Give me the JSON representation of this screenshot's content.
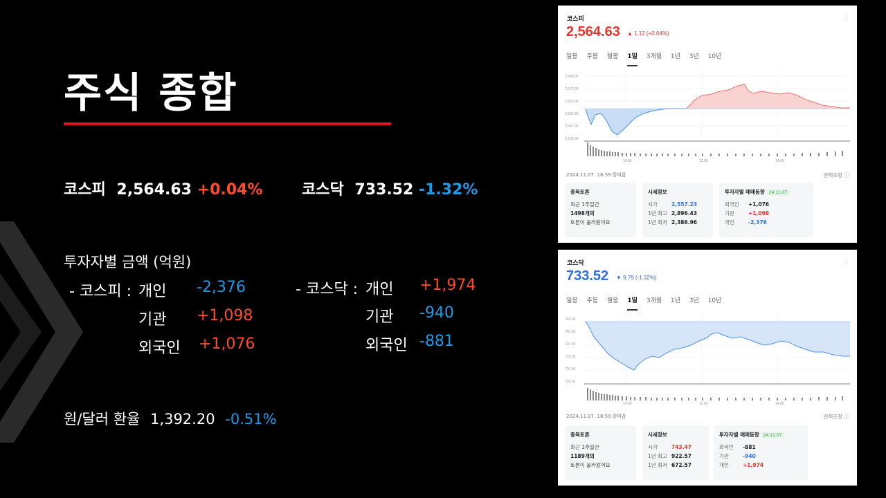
{
  "title": "주식 종합",
  "indices": {
    "kospi": {
      "label": "코스피",
      "value": "2,564.63",
      "change": "+0.04%"
    },
    "kosdaq": {
      "label": "코스닥",
      "value": "733.52",
      "change": "-1.32%"
    }
  },
  "investors": {
    "title": "투자자별 금액 (억원)",
    "kospi_label": "- 코스피 :",
    "kosdaq_label": "- 코스닥 :",
    "kospi": [
      {
        "name": "개인",
        "value": "-2,376"
      },
      {
        "name": "기관",
        "value": "+1,098"
      },
      {
        "name": "외국인",
        "value": "+1,076"
      }
    ],
    "kosdaq": [
      {
        "name": "개인",
        "value": "+1,974"
      },
      {
        "name": "기관",
        "value": "-940"
      },
      {
        "name": "외국인",
        "value": "-881"
      }
    ]
  },
  "fx": {
    "label": "원/달러 환율",
    "value": "1,392.20",
    "change": "-0.51%"
  },
  "colors": {
    "accent_red": "#e0121b",
    "up": "#ff4b2b",
    "down": "#1e9be8"
  },
  "kospi_panel": {
    "name": "코스피",
    "price": "2,564.63",
    "change": "▲ 1.12 (+0.04%)",
    "tabs": [
      "일봉",
      "주봉",
      "월봉",
      "1일",
      "3개월",
      "1년",
      "3년",
      "10년"
    ],
    "active_tab": "1일",
    "yticks": [
      "2,583.00",
      "2,574.00",
      "2,565.00",
      "2,556.00",
      "2,547.00",
      "2,538.00"
    ],
    "xticks": [
      "10:00",
      "12:00",
      "14:00"
    ],
    "date": "2024.11.07. 18:59 장마감",
    "disclaimer": "면책조항 ⓘ",
    "discussion": {
      "title": "종목토론",
      "line1": "최근 1주일간",
      "line2": "1498개의",
      "line3": "토론이 올라왔어요"
    },
    "market": {
      "title": "시세정보",
      "open_label": "시가",
      "open": "2,557.23",
      "high_label": "1년 최고",
      "high": "2,896.43",
      "low_label": "1년 최저",
      "low": "2,386.96"
    },
    "investor": {
      "title": "투자자별 매매동향",
      "badge": "24.11.07",
      "rows": [
        {
          "name": "외국인",
          "value": "+1,076"
        },
        {
          "name": "기관",
          "value": "+1,098"
        },
        {
          "name": "개인",
          "value": "-2,376"
        }
      ]
    }
  },
  "kosdaq_panel": {
    "name": "코스닥",
    "price": "733.52",
    "change": "▼ 9.79 (-1.32%)",
    "tabs": [
      "일봉",
      "주봉",
      "월봉",
      "1일",
      "3개월",
      "1년",
      "3년",
      "10년"
    ],
    "active_tab": "1일",
    "yticks": [
      "744.00",
      "740.50",
      "737.00",
      "733.50",
      "730.00",
      "726.50"
    ],
    "xticks": [
      "10:00",
      "12:00",
      "14:00"
    ],
    "date": "2024.11.07. 18:59 장마감",
    "disclaimer": "면책조항 ⓘ",
    "discussion": {
      "title": "종목토론",
      "line1": "최근 1주일간",
      "line2": "1189개의",
      "line3": "토론이 올라왔어요"
    },
    "market": {
      "title": "시세정보",
      "open_label": "시가",
      "open": "743.47",
      "high_label": "1년 최고",
      "high": "922.57",
      "low_label": "1년 최저",
      "low": "672.57"
    },
    "investor": {
      "title": "투자자별 매매동향",
      "badge": "24.11.07",
      "rows": [
        {
          "name": "외국인",
          "value": "-881"
        },
        {
          "name": "기관",
          "value": "-940"
        },
        {
          "name": "개인",
          "value": "+1,974"
        }
      ]
    }
  }
}
